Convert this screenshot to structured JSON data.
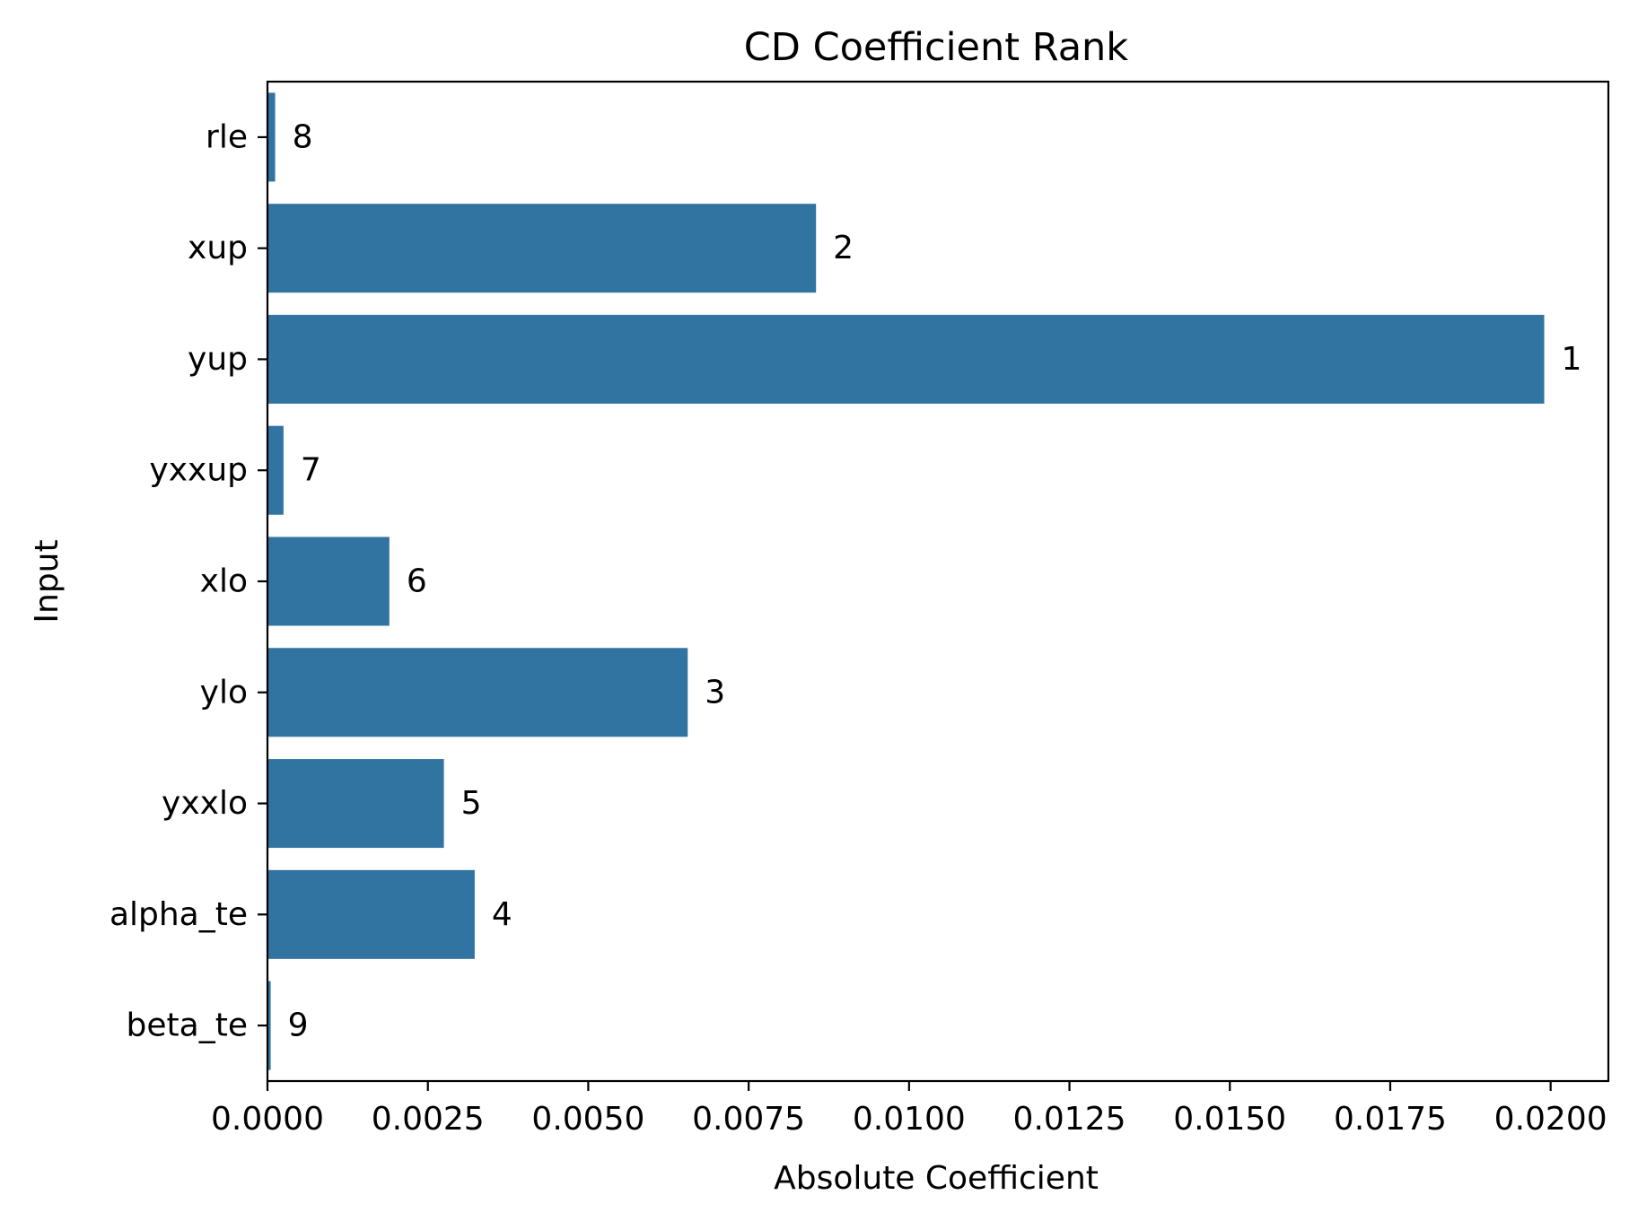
{
  "chart_data": {
    "type": "bar",
    "orientation": "horizontal",
    "title": "CD Coefficient Rank",
    "xlabel": "Absolute Coefficient",
    "ylabel": "Input",
    "categories": [
      "rle",
      "xup",
      "yup",
      "yxxup",
      "xlo",
      "ylo",
      "yxxlo",
      "alpha_te",
      "beta_te"
    ],
    "values": [
      0.00012,
      0.00855,
      0.0199,
      0.00025,
      0.0019,
      0.00655,
      0.00275,
      0.00323,
      5e-05
    ],
    "rank_labels": [
      "8",
      "2",
      "1",
      "7",
      "6",
      "3",
      "5",
      "4",
      "9"
    ],
    "xlim": [
      0,
      0.0209
    ],
    "xticks": [
      0,
      0.0025,
      0.005,
      0.0075,
      0.01,
      0.0125,
      0.015,
      0.0175,
      0.02
    ],
    "xtick_labels": [
      "0.0000",
      "0.0025",
      "0.0050",
      "0.0075",
      "0.0100",
      "0.0125",
      "0.0150",
      "0.0175",
      "0.0200"
    ],
    "grid": false,
    "legend": "none",
    "bar_color": "#3274a1"
  }
}
